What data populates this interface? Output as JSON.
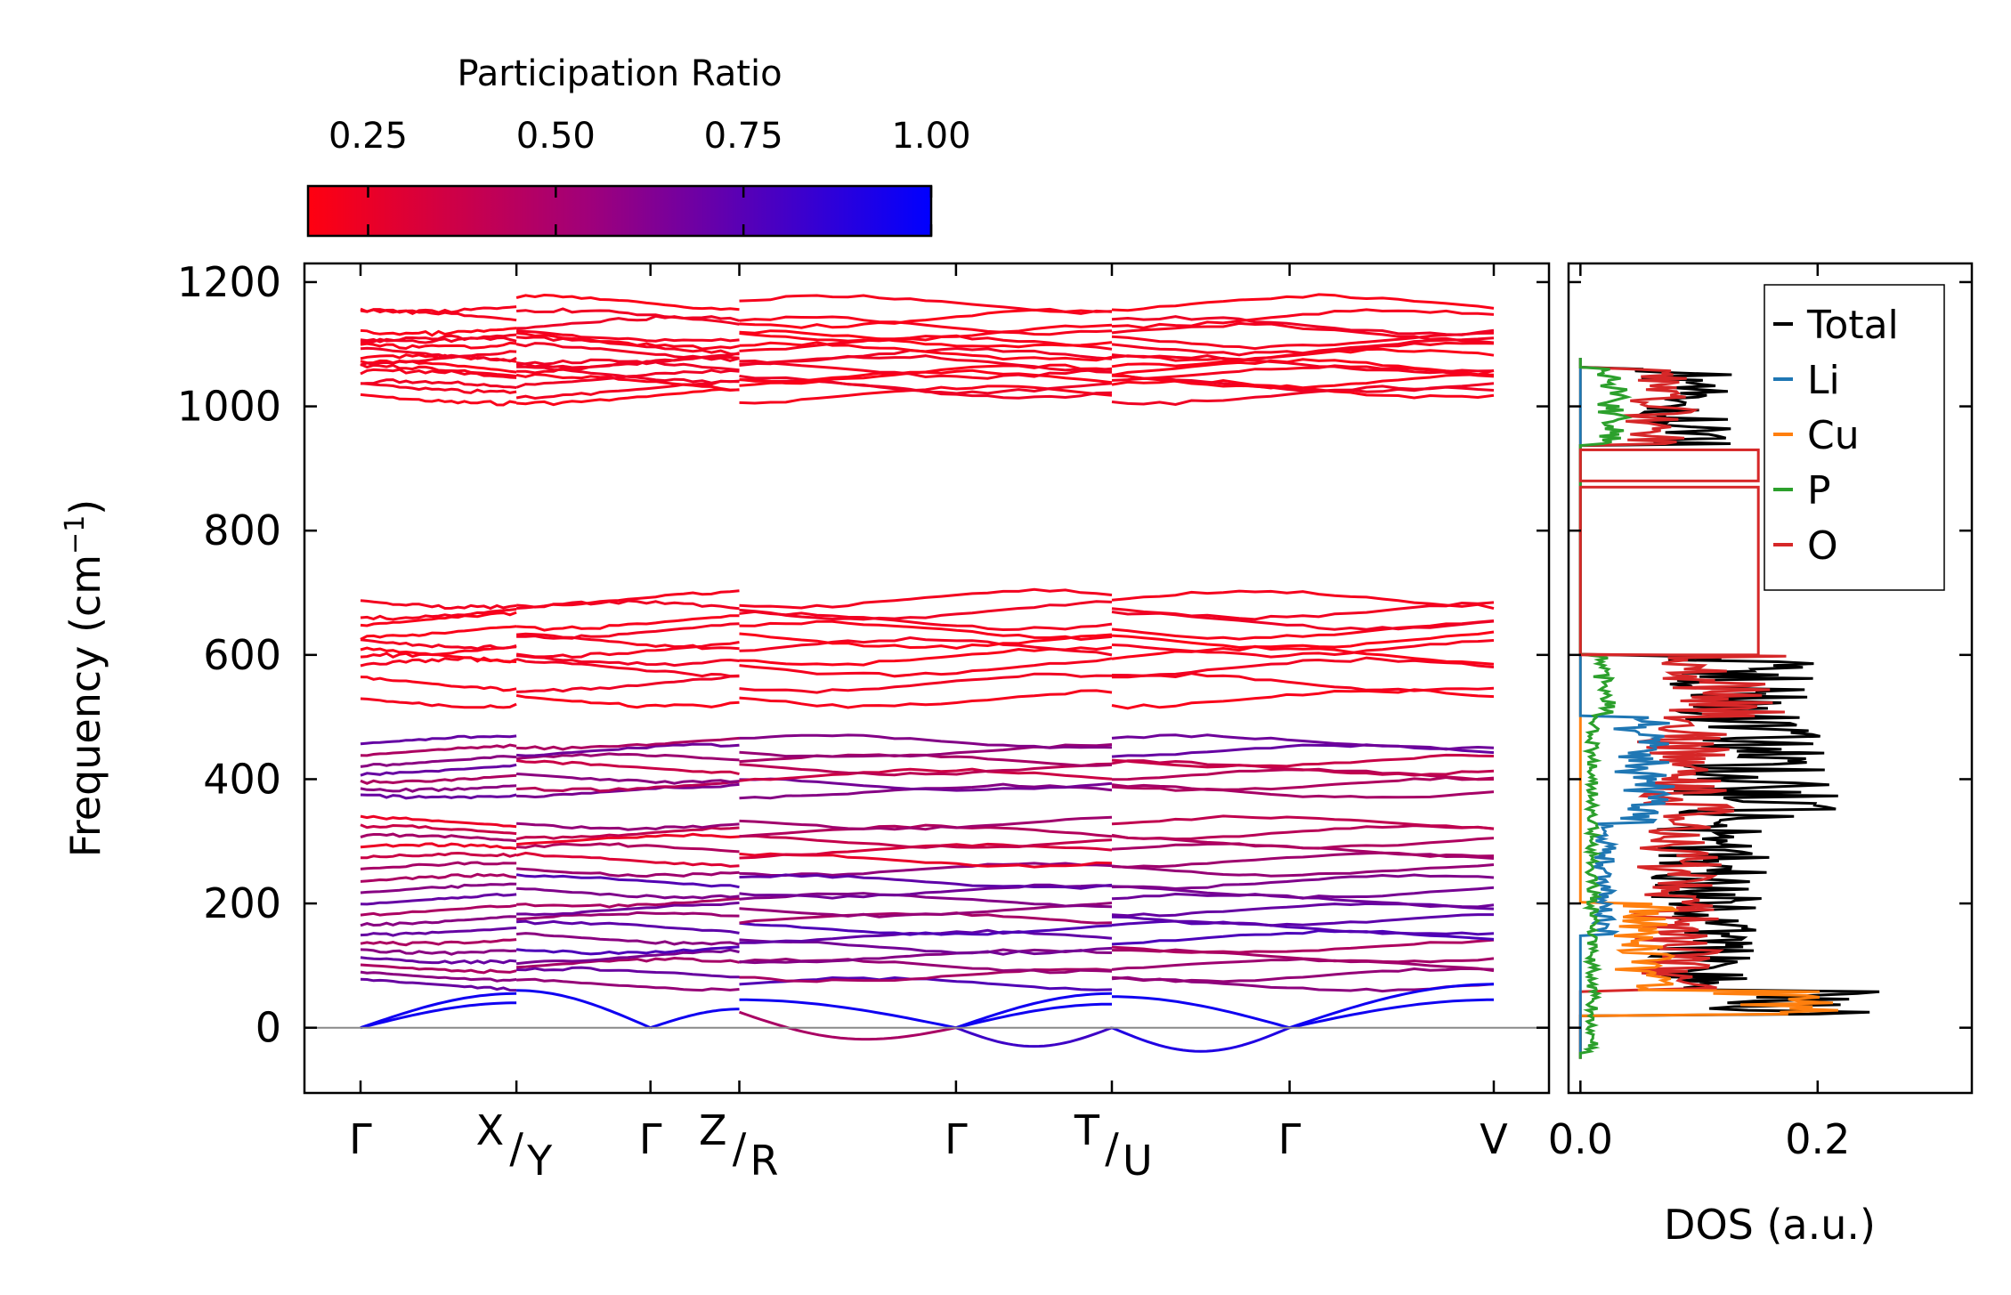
{
  "chart_data": [
    {
      "type": "line",
      "kind": "phonon-band-structure",
      "ylabel": "Frequency (cm",
      "ylabel_sup": "−1",
      "ylabel_close": ")",
      "ylim": [
        -105,
        1230
      ],
      "yticks": [
        0,
        200,
        400,
        600,
        800,
        1000,
        1200
      ],
      "ytick_labels": [
        "0",
        "200",
        "400",
        "600",
        "800",
        "1000",
        "1200"
      ],
      "kpath": [
        {
          "label": "Γ",
          "pos": 0.0
        },
        {
          "label": "X/Y",
          "top": "X",
          "bottom": "Y",
          "pos": 1.0
        },
        {
          "label": "Γ",
          "pos": 1.86
        },
        {
          "label": "Z/R",
          "top": "Z",
          "bottom": "R",
          "pos": 2.43
        },
        {
          "label": "Γ",
          "pos": 3.82
        },
        {
          "label": "T/U",
          "top": "T",
          "bottom": "U",
          "pos": 4.82
        },
        {
          "label": "Γ",
          "pos": 5.96
        },
        {
          "label": "V",
          "pos": 7.27
        }
      ],
      "segment_breaks": [
        1.0,
        2.43,
        4.82
      ],
      "zero_line": 0,
      "colorbar": {
        "title": "Participation Ratio",
        "range": [
          0.17,
          1.0
        ],
        "ticks": [
          0.25,
          0.5,
          0.75,
          1.0
        ],
        "tick_labels": [
          "0.25",
          "0.50",
          "0.75",
          "1.00"
        ],
        "color_low": "#ff0000",
        "color_high": "#0000ff"
      },
      "band_groups": [
        {
          "name": "high",
          "freqs": [
            1018,
            1028,
            1036,
            1044,
            1052,
            1060,
            1068,
            1078,
            1088,
            1098,
            1108,
            1118,
            1130,
            1142,
            1165
          ],
          "pr": 0.2
        },
        {
          "name": "mid-high",
          "freqs": [
            530,
            555,
            580,
            598,
            612,
            625,
            640,
            655,
            672,
            690
          ],
          "pr": 0.2
        },
        {
          "name": "mid",
          "freqs": [
            380,
            392,
            405,
            418,
            430,
            445,
            460
          ],
          "pr": 0.5
        },
        {
          "name": "mid-low",
          "freqs": [
            255,
            270,
            285,
            300,
            315,
            330
          ],
          "pr": 0.4
        },
        {
          "name": "low",
          "freqs": [
            70,
            85,
            100,
            115,
            130,
            145,
            160,
            175,
            190,
            205,
            220,
            235
          ],
          "pr": 0.6
        }
      ]
    },
    {
      "type": "line",
      "kind": "density-of-states",
      "xlabel": "DOS (a.u.)",
      "xlim": [
        -0.01,
        0.33
      ],
      "xticks": [
        0.0,
        0.2
      ],
      "xtick_labels": [
        "0.0",
        "0.2"
      ],
      "ylim": [
        -105,
        1230
      ],
      "series": [
        {
          "name": "Total",
          "color": "#000000"
        },
        {
          "name": "Li",
          "color": "#1f77b4"
        },
        {
          "name": "Cu",
          "color": "#ff7f0e"
        },
        {
          "name": "P",
          "color": "#2ca02c"
        },
        {
          "name": "O",
          "color": "#d62728"
        }
      ],
      "legend_position": "top-right"
    }
  ]
}
